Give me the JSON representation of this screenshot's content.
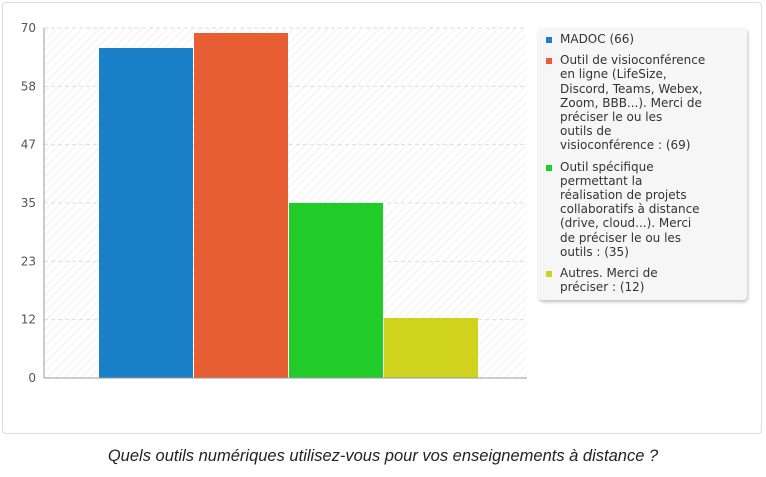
{
  "chart_data": {
    "type": "bar",
    "categories": [
      "MADOC (66)",
      "Outil de visioconférence en ligne (LifeSize, Discord, Teams, Webex, Zoom, BBB...). Merci de préciser le ou les outils de visioconférence : (69)",
      "Outil spécifique permettant la réalisation de projets collaboratifs à distance (drive, cloud...). Merci de préciser le ou les outils  : (35)",
      "Autres. Merci de préciser : (12)"
    ],
    "values": [
      66,
      69,
      35,
      12
    ],
    "colors": [
      "#1a80c8",
      "#e75e32",
      "#22cc28",
      "#d0d31e"
    ],
    "ylim": [
      0,
      70
    ],
    "yticks": [
      "0",
      "12",
      "23",
      "35",
      "47",
      "58",
      "70"
    ],
    "ytick_values": [
      0,
      11.67,
      23.33,
      35,
      46.67,
      58.33,
      70
    ],
    "grid": true,
    "legend_position": "right",
    "title": "",
    "xlabel": "",
    "ylabel": ""
  },
  "legend": {
    "items": [
      {
        "label_lines": [
          "MADOC (66)"
        ]
      },
      {
        "label_lines": [
          "Outil de visioconférence",
          "en ligne (LifeSize,",
          "Discord, Teams, Webex,",
          "Zoom, BBB...). Merci de",
          "préciser le ou les",
          "outils de",
          "visioconférence : (69)"
        ]
      },
      {
        "label_lines": [
          "Outil spécifique",
          "permettant la",
          "réalisation de projets",
          "collaboratifs à distance",
          "(drive, cloud...). Merci",
          "de préciser le ou les",
          "outils  : (35)"
        ]
      },
      {
        "label_lines": [
          "Autres. Merci de",
          "préciser : (12)"
        ]
      }
    ]
  },
  "caption": "Quels outils numériques utilisez-vous pour vos enseignements à distance ?"
}
